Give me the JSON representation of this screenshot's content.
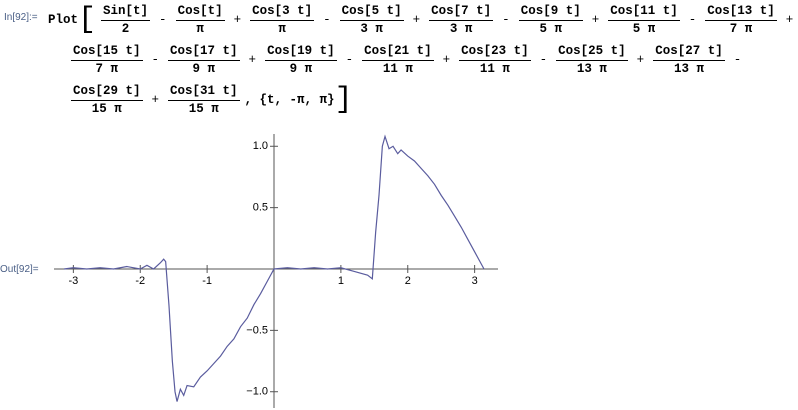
{
  "input": {
    "label": "In[92]:=",
    "head": "Plot",
    "open": "[",
    "close": "]",
    "tail": ", {t, -π, π}",
    "lines": [
      [
        {
          "num": "Sin[t]",
          "den": "2"
        },
        {
          "op": "-"
        },
        {
          "num": "Cos[t]",
          "den": "π"
        },
        {
          "op": "+"
        },
        {
          "num": "Cos[3 t]",
          "den": "π"
        },
        {
          "op": "-"
        },
        {
          "num": "Cos[5 t]",
          "den": "3 π"
        },
        {
          "op": "+"
        },
        {
          "num": "Cos[7 t]",
          "den": "3 π"
        },
        {
          "op": "-"
        },
        {
          "num": "Cos[9 t]",
          "den": "5 π"
        },
        {
          "op": "+"
        },
        {
          "num": "Cos[11 t]",
          "den": "5 π"
        },
        {
          "op": "-"
        },
        {
          "num": "Cos[13 t]",
          "den": "7 π"
        },
        {
          "op": "+"
        }
      ],
      [
        {
          "num": "Cos[15 t]",
          "den": "7 π"
        },
        {
          "op": "-"
        },
        {
          "num": "Cos[17 t]",
          "den": "9 π"
        },
        {
          "op": "+"
        },
        {
          "num": "Cos[19 t]",
          "den": "9 π"
        },
        {
          "op": "-"
        },
        {
          "num": "Cos[21 t]",
          "den": "11 π"
        },
        {
          "op": "+"
        },
        {
          "num": "Cos[23 t]",
          "den": "11 π"
        },
        {
          "op": "-"
        },
        {
          "num": "Cos[25 t]",
          "den": "13 π"
        },
        {
          "op": "+"
        },
        {
          "num": "Cos[27 t]",
          "den": "13 π"
        },
        {
          "op": "-"
        }
      ],
      [
        {
          "num": "Cos[29 t]",
          "den": "15 π"
        },
        {
          "op": "+"
        },
        {
          "num": "Cos[31 t]",
          "den": "15 π"
        }
      ]
    ]
  },
  "output": {
    "label": "Out[92]="
  },
  "chart_data": {
    "type": "line",
    "x": [
      -3.14,
      -3.0,
      -2.8,
      -2.6,
      -2.4,
      -2.2,
      -2.0,
      -1.9,
      -1.8,
      -1.7,
      -1.65,
      -1.62,
      -1.57,
      -1.52,
      -1.48,
      -1.45,
      -1.4,
      -1.35,
      -1.3,
      -1.2,
      -1.1,
      -1.0,
      -0.9,
      -0.8,
      -0.7,
      -0.6,
      -0.5,
      -0.4,
      -0.3,
      -0.2,
      -0.1,
      0.0,
      0.2,
      0.4,
      0.6,
      0.8,
      1.0,
      1.2,
      1.4,
      1.47,
      1.52,
      1.57,
      1.62,
      1.66,
      1.72,
      1.78,
      1.85,
      1.9,
      2.0,
      2.1,
      2.2,
      2.3,
      2.4,
      2.5,
      2.6,
      2.7,
      2.8,
      2.9,
      3.0,
      3.14
    ],
    "series": [
      {
        "color": "#5a5c9e",
        "values": [
          0.0,
          0.01,
          0.0,
          0.01,
          0.0,
          0.02,
          0.0,
          0.03,
          0.0,
          0.05,
          0.08,
          0.06,
          -0.3,
          -0.75,
          -1.0,
          -1.08,
          -0.98,
          -1.03,
          -0.95,
          -0.96,
          -0.88,
          -0.83,
          -0.77,
          -0.71,
          -0.63,
          -0.57,
          -0.47,
          -0.4,
          -0.29,
          -0.2,
          -0.1,
          0.0,
          0.01,
          0.0,
          0.01,
          0.0,
          0.01,
          -0.02,
          -0.05,
          -0.08,
          0.3,
          0.6,
          1.0,
          1.08,
          0.98,
          1.0,
          0.94,
          0.97,
          0.92,
          0.88,
          0.82,
          0.76,
          0.69,
          0.6,
          0.52,
          0.43,
          0.34,
          0.24,
          0.14,
          0.0
        ]
      }
    ],
    "xlim": [
      -3.14,
      3.14
    ],
    "ylim": [
      -1.1,
      1.1
    ],
    "xticks": [
      -3,
      -2,
      -1,
      1,
      2,
      3
    ],
    "yticks": [
      {
        "value": -1,
        "label": "−1.0"
      },
      {
        "value": -0.5,
        "label": "−0.5"
      },
      {
        "value": 0.5,
        "label": "0.5"
      },
      {
        "value": 1,
        "label": "1.0"
      }
    ]
  }
}
